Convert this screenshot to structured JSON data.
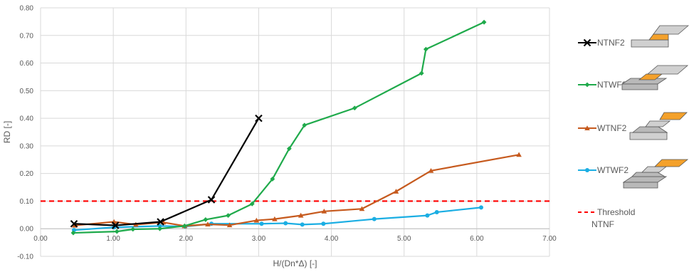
{
  "chart_data": {
    "type": "line",
    "xlabel": "H/(Dn*Δ) [-]",
    "ylabel": "RD [-]",
    "xlim": [
      0,
      7
    ],
    "ylim": [
      -0.1,
      0.8
    ],
    "x_ticks": [
      0,
      1,
      2,
      3,
      4,
      5,
      6,
      7
    ],
    "x_tick_labels": [
      "0.00",
      "1.00",
      "2.00",
      "3.00",
      "4.00",
      "5.00",
      "6.00",
      "7.00"
    ],
    "y_ticks": [
      -0.1,
      0,
      0.1,
      0.2,
      0.3,
      0.4,
      0.5,
      0.6,
      0.7,
      0.8
    ],
    "y_tick_labels": [
      "-0.10",
      "0.00",
      "0.10",
      "0.20",
      "0.30",
      "0.40",
      "0.50",
      "0.60",
      "0.70",
      "0.80"
    ],
    "grid": "vertical and horizontal gridlines",
    "legend_position": "right",
    "series": [
      {
        "name": "NTNF2",
        "color": "#000000",
        "marker": "x",
        "points": [
          [
            0.46,
            0.018
          ],
          [
            1.03,
            0.012
          ],
          [
            1.65,
            0.025
          ],
          [
            2.35,
            0.105
          ],
          [
            3.0,
            0.4
          ]
        ]
      },
      {
        "name": "NTWF2",
        "color": "#1FAA4B",
        "marker": "diamond",
        "points": [
          [
            0.45,
            -0.015
          ],
          [
            1.05,
            -0.01
          ],
          [
            1.27,
            -0.002
          ],
          [
            1.64,
            0.0
          ],
          [
            1.98,
            0.01
          ],
          [
            2.27,
            0.033
          ],
          [
            2.58,
            0.048
          ],
          [
            2.91,
            0.09
          ],
          [
            3.19,
            0.18
          ],
          [
            3.42,
            0.29
          ],
          [
            3.63,
            0.375
          ],
          [
            4.32,
            0.437
          ],
          [
            5.24,
            0.563
          ],
          [
            5.3,
            0.65
          ],
          [
            6.1,
            0.748
          ]
        ]
      },
      {
        "name": "WTNF2",
        "color": "#C65A1E",
        "marker": "triangle",
        "points": [
          [
            0.47,
            0.012
          ],
          [
            1.01,
            0.025
          ],
          [
            1.31,
            0.015
          ],
          [
            1.69,
            0.023
          ],
          [
            1.98,
            0.01
          ],
          [
            2.3,
            0.016
          ],
          [
            2.6,
            0.013
          ],
          [
            2.97,
            0.03
          ],
          [
            3.22,
            0.035
          ],
          [
            3.58,
            0.048
          ],
          [
            3.9,
            0.063
          ],
          [
            4.42,
            0.072
          ],
          [
            4.89,
            0.135
          ],
          [
            5.37,
            0.21
          ],
          [
            6.58,
            0.268
          ]
        ]
      },
      {
        "name": "WTWF2",
        "color": "#1BAEE3",
        "marker": "circle",
        "points": [
          [
            0.46,
            -0.005
          ],
          [
            1.01,
            0.005
          ],
          [
            1.64,
            0.01
          ],
          [
            1.99,
            0.008
          ],
          [
            2.35,
            0.018
          ],
          [
            3.04,
            0.018
          ],
          [
            3.37,
            0.02
          ],
          [
            3.6,
            0.015
          ],
          [
            3.89,
            0.018
          ],
          [
            4.59,
            0.035
          ],
          [
            5.32,
            0.048
          ],
          [
            5.45,
            0.06
          ],
          [
            6.06,
            0.077
          ]
        ]
      },
      {
        "name": "Threshold\nNTNF",
        "color": "#FF0000",
        "style": "dashed",
        "points": [
          [
            0,
            0.1
          ],
          [
            7,
            0.1
          ]
        ]
      }
    ]
  }
}
